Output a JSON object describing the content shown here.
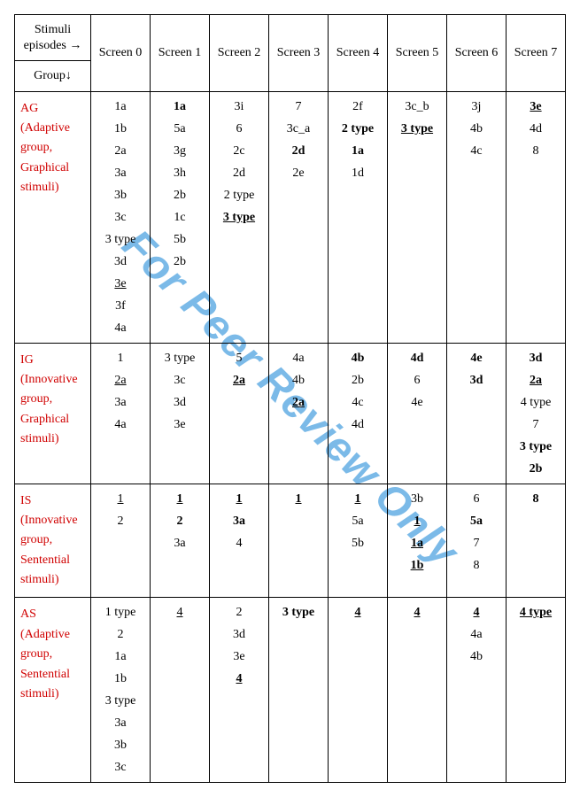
{
  "watermark": "For Peer Review Only",
  "header": {
    "corner_line1": "Stimuli",
    "corner_line2": "episodes →",
    "group_sub": "Group↓",
    "screens": [
      "Screen 0",
      "Screen 1",
      "Screen 2",
      "Screen 3",
      "Screen 4",
      "Screen 5",
      "Screen 6",
      "Screen 7"
    ]
  },
  "rows": [
    {
      "abbr": "AG",
      "desc": "(Adaptive group, Graphical stimuli)",
      "cells": [
        [
          {
            "t": "1a"
          },
          {
            "t": "1b"
          },
          {
            "t": "2a"
          },
          {
            "t": "3a"
          },
          {
            "t": "3b"
          },
          {
            "t": "3c"
          },
          {
            "t": "3 type"
          },
          {
            "t": "3d"
          },
          {
            "t": "3e",
            "u": true
          },
          {
            "t": "3f"
          },
          {
            "t": "4a"
          }
        ],
        [
          {
            "t": "1a",
            "b": true
          },
          {
            "t": "5a"
          },
          {
            "t": "3g"
          },
          {
            "t": "3h"
          },
          {
            "t": "2b"
          },
          {
            "t": "1c"
          },
          {
            "t": "5b"
          },
          {
            "t": "2b"
          }
        ],
        [
          {
            "t": "3i"
          },
          {
            "t": "6"
          },
          {
            "t": "2c"
          },
          {
            "t": "2d"
          },
          {
            "t": "2 type"
          },
          {
            "t": "3 type",
            "b": true,
            "u": true
          }
        ],
        [
          {
            "t": "7"
          },
          {
            "t": "3c_a"
          },
          {
            "t": "2d",
            "b": true
          },
          {
            "t": "2e"
          }
        ],
        [
          {
            "t": "2f"
          },
          {
            "t": "2 type",
            "b": true
          },
          {
            "t": "1a",
            "b": true
          },
          {
            "t": "1d"
          }
        ],
        [
          {
            "t": "3c_b"
          },
          {
            "t": "3 type",
            "b": true,
            "u": true
          }
        ],
        [
          {
            "t": "3j"
          },
          {
            "t": "4b"
          },
          {
            "t": "4c"
          }
        ],
        [
          {
            "t": "3e",
            "b": true,
            "u": true
          },
          {
            "t": "4d"
          },
          {
            "t": "8"
          }
        ]
      ]
    },
    {
      "abbr": "IG",
      "desc": "(Innovative group, Graphical stimuli)",
      "cells": [
        [
          {
            "t": "1"
          },
          {
            "t": "2a",
            "u": true
          },
          {
            "t": "3a"
          },
          {
            "t": "4a"
          }
        ],
        [
          {
            "t": "3 type"
          },
          {
            "t": "3c"
          },
          {
            "t": "3d"
          },
          {
            "t": "3e"
          }
        ],
        [
          {
            "t": "5"
          },
          {
            "t": "2a",
            "b": true,
            "u": true
          }
        ],
        [
          {
            "t": "4a"
          },
          {
            "t": "4b"
          },
          {
            "t": "2a",
            "b": true,
            "u": true
          }
        ],
        [
          {
            "t": "4b",
            "b": true
          },
          {
            "t": "2b"
          },
          {
            "t": "4c"
          },
          {
            "t": "4d"
          }
        ],
        [
          {
            "t": "4d",
            "b": true
          },
          {
            "t": "6"
          },
          {
            "t": "4e"
          }
        ],
        [
          {
            "t": "4e",
            "b": true
          },
          {
            "t": "3d",
            "b": true
          }
        ],
        [
          {
            "t": "3d",
            "b": true
          },
          {
            "t": "2a",
            "b": true,
            "u": true
          },
          {
            "t": "4 type"
          },
          {
            "t": "7"
          },
          {
            "t": "3 type",
            "b": true
          },
          {
            "t": "2b",
            "b": true
          }
        ]
      ]
    },
    {
      "abbr": "IS",
      "desc": "(Innovative group, Sentential stimuli)",
      "cells": [
        [
          {
            "t": "1",
            "u": true
          },
          {
            "t": "2"
          }
        ],
        [
          {
            "t": "1",
            "b": true,
            "u": true
          },
          {
            "t": "2",
            "b": true
          },
          {
            "t": "3a"
          }
        ],
        [
          {
            "t": "1",
            "b": true,
            "u": true
          },
          {
            "t": "3a",
            "b": true
          },
          {
            "t": "4"
          }
        ],
        [
          {
            "t": "1",
            "b": true,
            "u": true
          }
        ],
        [
          {
            "t": "1",
            "b": true,
            "u": true
          },
          {
            "t": "5a"
          },
          {
            "t": "5b"
          }
        ],
        [
          {
            "t": "3b"
          },
          {
            "t": "1",
            "b": true,
            "u": true
          },
          {
            "t": "1a",
            "b": true,
            "u": true
          },
          {
            "t": "1b",
            "b": true,
            "u": true
          }
        ],
        [
          {
            "t": "6"
          },
          {
            "t": "5a",
            "b": true
          },
          {
            "t": "7"
          },
          {
            "t": "8"
          }
        ],
        [
          {
            "t": "8",
            "b": true
          }
        ]
      ]
    },
    {
      "abbr": "AS",
      "desc": "(Adaptive group, Sentential stimuli)",
      "cells": [
        [
          {
            "t": "1 type"
          },
          {
            "t": "2"
          },
          {
            "t": "1a"
          },
          {
            "t": "1b"
          },
          {
            "t": "3 type"
          },
          {
            "t": "3a"
          },
          {
            "t": "3b"
          },
          {
            "t": "3c"
          }
        ],
        [
          {
            "t": "4",
            "u": true
          }
        ],
        [
          {
            "t": "2"
          },
          {
            "t": "3d"
          },
          {
            "t": "3e"
          },
          {
            "t": "4",
            "b": true,
            "u": true
          }
        ],
        [
          {
            "t": "3 type",
            "b": true
          }
        ],
        [
          {
            "t": "4",
            "b": true,
            "u": true
          }
        ],
        [
          {
            "t": "4",
            "b": true,
            "u": true
          }
        ],
        [
          {
            "t": "4",
            "b": true,
            "u": true
          },
          {
            "t": "4a"
          },
          {
            "t": "4b"
          }
        ],
        [
          {
            "t": "4 type",
            "b": true,
            "u": true
          }
        ]
      ]
    }
  ]
}
